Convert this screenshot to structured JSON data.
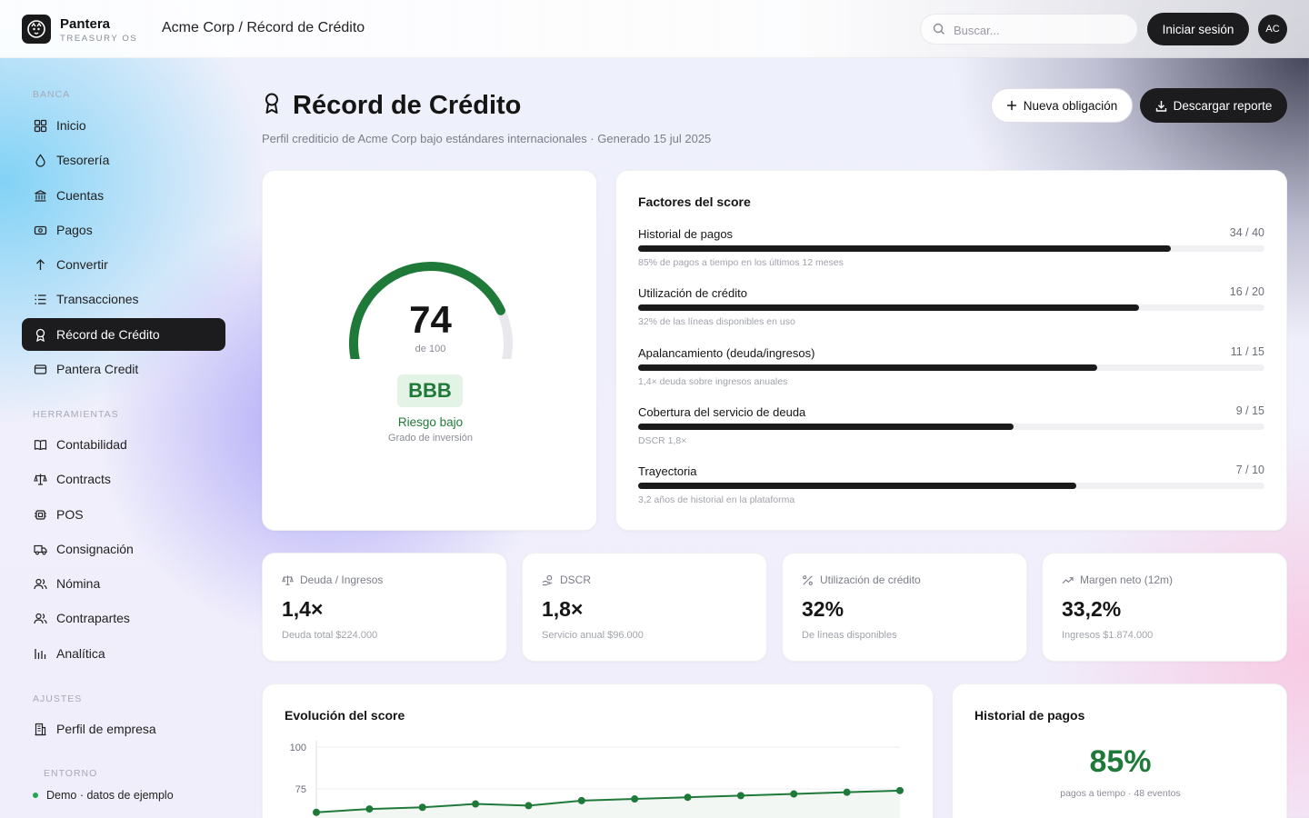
{
  "header": {
    "brand_name": "Pantera",
    "brand_sub": "TREASURY OS",
    "breadcrumb": "Acme Corp / Récord de Crédito",
    "search_placeholder": "Buscar...",
    "login_label": "Iniciar sesión",
    "avatar_initials": "AC"
  },
  "sidebar": {
    "section_banca": "BANCA",
    "banca_items": [
      {
        "label": "Inicio",
        "icon": "grid-icon"
      },
      {
        "label": "Tesorería",
        "icon": "drop-icon"
      },
      {
        "label": "Cuentas",
        "icon": "bank-icon"
      },
      {
        "label": "Pagos",
        "icon": "cash-icon"
      },
      {
        "label": "Convertir",
        "icon": "arrow-up-icon"
      },
      {
        "label": "Transacciones",
        "icon": "list-icon"
      },
      {
        "label": "Récord de Crédito",
        "icon": "award-icon",
        "active": true
      },
      {
        "label": "Pantera Credit",
        "icon": "card-icon"
      }
    ],
    "section_herramientas": "HERRAMIENTAS",
    "herramientas_items": [
      {
        "label": "Contabilidad",
        "icon": "book-icon"
      },
      {
        "label": "Contracts",
        "icon": "scale-icon"
      },
      {
        "label": "POS",
        "icon": "chip-icon"
      },
      {
        "label": "Consignación",
        "icon": "truck-icon"
      },
      {
        "label": "Nómina",
        "icon": "users-icon"
      },
      {
        "label": "Contrapartes",
        "icon": "users-icon"
      },
      {
        "label": "Analítica",
        "icon": "bar-chart-icon"
      }
    ],
    "section_ajustes": "AJUSTES",
    "ajustes_items": [
      {
        "label": "Perfil de empresa",
        "icon": "building-icon"
      }
    ],
    "env_label": "ENTORNO",
    "env_status": "Demo · datos de ejemplo"
  },
  "page": {
    "title": "Récord de Crédito",
    "subtitle": "Perfil crediticio de Acme Corp bajo estándares internacionales · Generado 15 jul 2025",
    "new_obligation_label": "Nueva obligación",
    "download_label": "Descargar reporte"
  },
  "score": {
    "value": "74",
    "value_num": 74,
    "max_num": 100,
    "of_label": "de 100",
    "grade": "BBB",
    "risk": "Riesgo bajo",
    "grade_note": "Grado de inversión",
    "accent": "#1f7a3a"
  },
  "factors": {
    "title": "Factores del score",
    "items": [
      {
        "name": "Historial de pagos",
        "score": "34 / 40",
        "points": 34,
        "max": 40,
        "note": "85% de pagos a tiempo en los últimos 12 meses"
      },
      {
        "name": "Utilización de crédito",
        "score": "16 / 20",
        "points": 16,
        "max": 20,
        "note": "32% de las líneas disponibles en uso"
      },
      {
        "name": "Apalancamiento (deuda/ingresos)",
        "score": "11 / 15",
        "points": 11,
        "max": 15,
        "note": "1,4× deuda sobre ingresos anuales"
      },
      {
        "name": "Cobertura del servicio de deuda",
        "score": "9 / 15",
        "points": 9,
        "max": 15,
        "note": "DSCR 1,8×"
      },
      {
        "name": "Trayectoria",
        "score": "7 / 10",
        "points": 7,
        "max": 10,
        "note": "3,2 años de historial en la plataforma"
      }
    ]
  },
  "kpis": [
    {
      "label": "Deuda / Ingresos",
      "icon": "scale-icon",
      "value": "1,4×",
      "note": "Deuda total $224.000"
    },
    {
      "label": "DSCR",
      "icon": "hand-coins-icon",
      "value": "1,8×",
      "note": "Servicio anual $96.000"
    },
    {
      "label": "Utilización de crédito",
      "icon": "percent-icon",
      "value": "32%",
      "note": "De líneas disponibles"
    },
    {
      "label": "Margen neto (12m)",
      "icon": "trending-up-icon",
      "value": "33,2%",
      "note": "Ingresos $1.874.000"
    }
  ],
  "evolution": {
    "title": "Evolución del score"
  },
  "payments": {
    "title": "Historial de pagos",
    "pct": "85%",
    "note": "pagos a tiempo · 48 eventos"
  },
  "chart_data": {
    "type": "line",
    "ylim": [
      50,
      100
    ],
    "yticks": [
      "100",
      "75"
    ],
    "series": [
      {
        "values": [
          61,
          63,
          64,
          66,
          65,
          68,
          69,
          70,
          71,
          72,
          73,
          74
        ]
      }
    ],
    "color": "#1f7a3a"
  }
}
